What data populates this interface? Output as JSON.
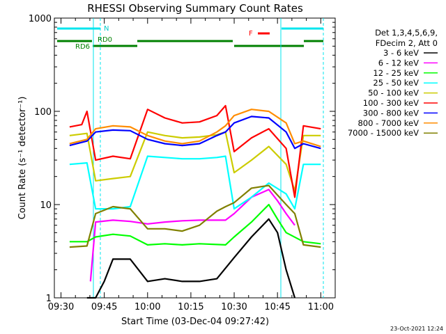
{
  "chart_data": {
    "type": "line",
    "title": "RHESSI Observing Summary Count Rates",
    "xlabel": "Start Time (03-Dec-04 09:27:42)",
    "ylabel": "Count Rate (s⁻¹ detector⁻¹)",
    "y_scale": "log",
    "ylim": [
      1,
      1000
    ],
    "xlim": [
      "09:27:42",
      "11:05:00"
    ],
    "x_ticks": [
      "09:30",
      "09:45",
      "10:00",
      "10:15",
      "10:30",
      "10:45",
      "11:00"
    ],
    "y_ticks": [
      "1",
      "10",
      "100",
      "1000"
    ],
    "grid": false,
    "legend_position": "right",
    "legend_header": [
      "Det 1,3,4,5,6,9,",
      "FDecim 2, Att 0"
    ],
    "timestamp": "23-Oct-2021 12:24",
    "annotations": {
      "N": "N",
      "F": "F",
      "RD0": "RD0",
      "RD6": "RD6"
    },
    "series": [
      {
        "name": "3 - 6 keV",
        "color": "#000000",
        "x": [
          9.65,
          9.7,
          9.75,
          9.8,
          9.9,
          10.0,
          10.1,
          10.2,
          10.3,
          10.4,
          10.5,
          10.6,
          10.7,
          10.75,
          10.8,
          10.85
        ],
        "y": [
          1.0,
          1.0,
          1.5,
          2.6,
          2.6,
          1.5,
          1.6,
          1.5,
          1.5,
          1.6,
          2.7,
          4.5,
          7.0,
          5.0,
          2.0,
          1.0
        ]
      },
      {
        "name": "6 - 12 keV",
        "color": "#ff00ff",
        "x": [
          9.67,
          9.7,
          9.8,
          9.9,
          10.0,
          10.1,
          10.2,
          10.3,
          10.45,
          10.5,
          10.6,
          10.7,
          10.75,
          10.8,
          10.85
        ],
        "y": [
          1.5,
          6.5,
          6.8,
          6.6,
          6.2,
          6.5,
          6.7,
          6.8,
          6.8,
          8.0,
          12.0,
          14.5,
          11.0,
          8.0,
          6.0
        ]
      },
      {
        "name": "12 - 25 keV",
        "color": "#00ff00",
        "x": [
          9.55,
          9.65,
          9.7,
          9.8,
          9.9,
          10.0,
          10.1,
          10.2,
          10.3,
          10.45,
          10.5,
          10.6,
          10.7,
          10.75,
          10.8,
          10.9,
          11.0
        ],
        "y": [
          4.0,
          4.0,
          4.5,
          4.8,
          4.6,
          3.7,
          3.8,
          3.7,
          3.8,
          3.7,
          4.5,
          6.5,
          10.0,
          7.0,
          5.0,
          4.0,
          3.8
        ]
      },
      {
        "name": "25 - 50 keV",
        "color": "#00ffff",
        "x": [
          9.55,
          9.65,
          9.7,
          9.8,
          9.9,
          10.0,
          10.1,
          10.2,
          10.3,
          10.4,
          10.45,
          10.5,
          10.6,
          10.7,
          10.8,
          10.85,
          10.9,
          11.0
        ],
        "y": [
          27,
          28,
          9,
          9,
          9.5,
          33,
          32,
          31,
          31,
          32,
          33,
          9,
          12,
          17,
          13,
          9,
          27,
          27
        ]
      },
      {
        "name": "50 - 100 keV",
        "color": "#cccc00",
        "x": [
          9.55,
          9.65,
          9.7,
          9.8,
          9.9,
          10.0,
          10.1,
          10.2,
          10.3,
          10.4,
          10.45,
          10.5,
          10.6,
          10.7,
          10.8,
          10.85,
          10.9,
          11.0
        ],
        "y": [
          55,
          58,
          18,
          19,
          20,
          60,
          55,
          52,
          53,
          56,
          60,
          22,
          30,
          42,
          27,
          14,
          55,
          55
        ]
      },
      {
        "name": "100 - 300 keV",
        "color": "#ff0000",
        "x": [
          9.55,
          9.62,
          9.65,
          9.7,
          9.8,
          9.9,
          10.0,
          10.1,
          10.2,
          10.3,
          10.4,
          10.45,
          10.5,
          10.6,
          10.7,
          10.8,
          10.85,
          10.9,
          11.0
        ],
        "y": [
          68,
          72,
          100,
          30,
          33,
          31,
          105,
          85,
          75,
          77,
          90,
          115,
          37,
          52,
          65,
          40,
          12,
          70,
          65
        ]
      },
      {
        "name": "300 - 800 keV",
        "color": "#0000ff",
        "x": [
          9.55,
          9.65,
          9.7,
          9.8,
          9.9,
          10.0,
          10.1,
          10.2,
          10.3,
          10.4,
          10.45,
          10.5,
          10.6,
          10.7,
          10.8,
          10.85,
          10.9,
          11.0
        ],
        "y": [
          43,
          48,
          60,
          63,
          62,
          50,
          45,
          43,
          45,
          55,
          60,
          75,
          88,
          85,
          60,
          40,
          45,
          40
        ]
      },
      {
        "name": "800 - 7000 keV",
        "color": "#ff8c00",
        "x": [
          9.55,
          9.65,
          9.7,
          9.8,
          9.9,
          10.0,
          10.1,
          10.2,
          10.3,
          10.4,
          10.45,
          10.5,
          10.6,
          10.7,
          10.8,
          10.85,
          10.9,
          11.0
        ],
        "y": [
          45,
          50,
          65,
          70,
          68,
          55,
          48,
          45,
          48,
          60,
          70,
          90,
          105,
          100,
          75,
          45,
          48,
          42
        ]
      },
      {
        "name": "7000 - 15000 keV",
        "color": "#808000",
        "x": [
          9.55,
          9.65,
          9.7,
          9.8,
          9.9,
          10.0,
          10.1,
          10.2,
          10.3,
          10.4,
          10.45,
          10.5,
          10.6,
          10.7,
          10.8,
          10.85,
          10.9,
          11.0
        ],
        "y": [
          3.5,
          3.6,
          8.0,
          9.5,
          9.0,
          5.5,
          5.5,
          5.2,
          6.0,
          8.5,
          9.5,
          10.5,
          15.0,
          16.0,
          10.0,
          8.0,
          3.7,
          3.5
        ]
      }
    ]
  }
}
